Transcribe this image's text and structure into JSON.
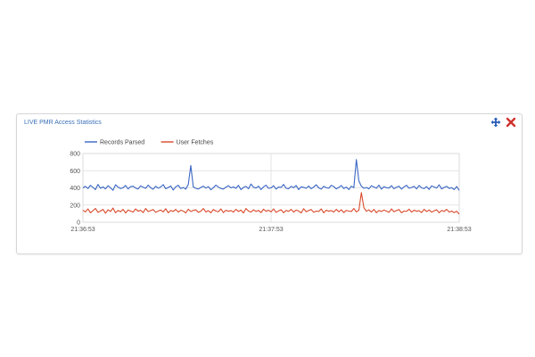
{
  "widget": {
    "title": "LIVE PMR Access Statistics",
    "tools": [
      {
        "name": "move-icon",
        "color": "#2a5cb8"
      },
      {
        "name": "close-icon",
        "color": "#d0312d"
      }
    ]
  },
  "chart_data": {
    "type": "line",
    "title": "",
    "xlabel": "",
    "ylabel": "",
    "ylim": [
      0,
      800
    ],
    "yticks": [
      0,
      200,
      400,
      600,
      800
    ],
    "xtick_labels": [
      "21:36:53",
      "21:37:53",
      "21:38:53"
    ],
    "grid": true,
    "legend_position": "top-left",
    "series": [
      {
        "name": "Records Parsed",
        "color": "#3a66c4",
        "values": [
          400,
          418,
          392,
          430,
          405,
          380,
          440,
          395,
          412,
          388,
          425,
          400,
          372,
          436,
          410,
          392,
          402,
          428,
          388,
          414,
          420,
          398,
          386,
          424,
          408,
          395,
          432,
          401,
          384,
          419,
          396,
          410,
          438,
          390,
          404,
          422,
          375,
          412,
          430,
          392,
          405,
          385,
          440,
          660,
          410,
          395,
          386,
          405,
          420,
          398,
          415,
          378,
          402,
          432,
          410,
          392,
          386,
          408,
          425,
          400,
          412,
          395,
          430,
          380,
          405,
          418,
          390,
          445,
          408,
          398,
          420,
          380,
          412,
          432,
          395,
          400,
          425,
          386,
          410,
          405,
          440,
          395,
          390,
          418,
          402,
          428,
          380,
          412,
          406,
          395,
          422,
          390,
          410,
          436,
          400,
          385,
          418,
          402,
          396,
          430,
          415,
          388,
          405,
          428,
          392,
          410,
          380,
          420,
          402,
          730,
          480,
          420,
          395,
          405,
          388,
          425,
          410,
          396,
          432,
          385,
          414,
          402,
          398,
          426,
          390,
          408,
          420,
          386,
          412,
          430,
          396,
          404,
          418,
          388,
          428,
          400,
          392,
          415,
          382,
          424,
          410,
          398,
          436,
          388,
          405,
          418,
          394,
          402,
          380,
          416,
          370
        ]
      },
      {
        "name": "User Fetches",
        "color": "#d94a2b",
        "values": [
          140,
          120,
          155,
          110,
          135,
          160,
          115,
          130,
          150,
          105,
          145,
          125,
          165,
          110,
          138,
          122,
          150,
          108,
          142,
          130,
          118,
          155,
          128,
          140,
          112,
          160,
          125,
          135,
          148,
          115,
          130,
          142,
          120,
          158,
          110,
          138,
          125,
          150,
          118,
          140,
          130,
          108,
          152,
          125,
          138,
          145,
          115,
          128,
          160,
          120,
          135,
          110,
          148,
          130,
          122,
          155,
          112,
          140,
          128,
          136,
          118,
          150,
          125,
          142,
          108,
          160,
          130,
          118,
          145,
          125,
          138,
          112,
          152,
          128,
          140,
          120,
          155,
          115,
          132,
          145,
          110,
          138,
          126,
          150,
          118,
          142,
          130,
          108,
          158,
          122,
          136,
          148,
          115,
          130,
          125,
          155,
          110,
          140,
          128,
          136,
          118,
          150,
          122,
          145,
          112,
          138,
          130,
          125,
          160,
          120,
          140,
          345,
          170,
          128,
          145,
          118,
          150,
          110,
          138,
          125,
          142,
          130,
          115,
          155,
          122,
          136,
          148,
          110,
          130,
          126,
          152,
          118,
          140,
          128,
          135,
          112,
          150,
          125,
          142,
          118,
          132,
          146,
          110,
          138,
          125,
          150,
          118,
          130,
          112,
          128,
          95
        ]
      }
    ]
  }
}
